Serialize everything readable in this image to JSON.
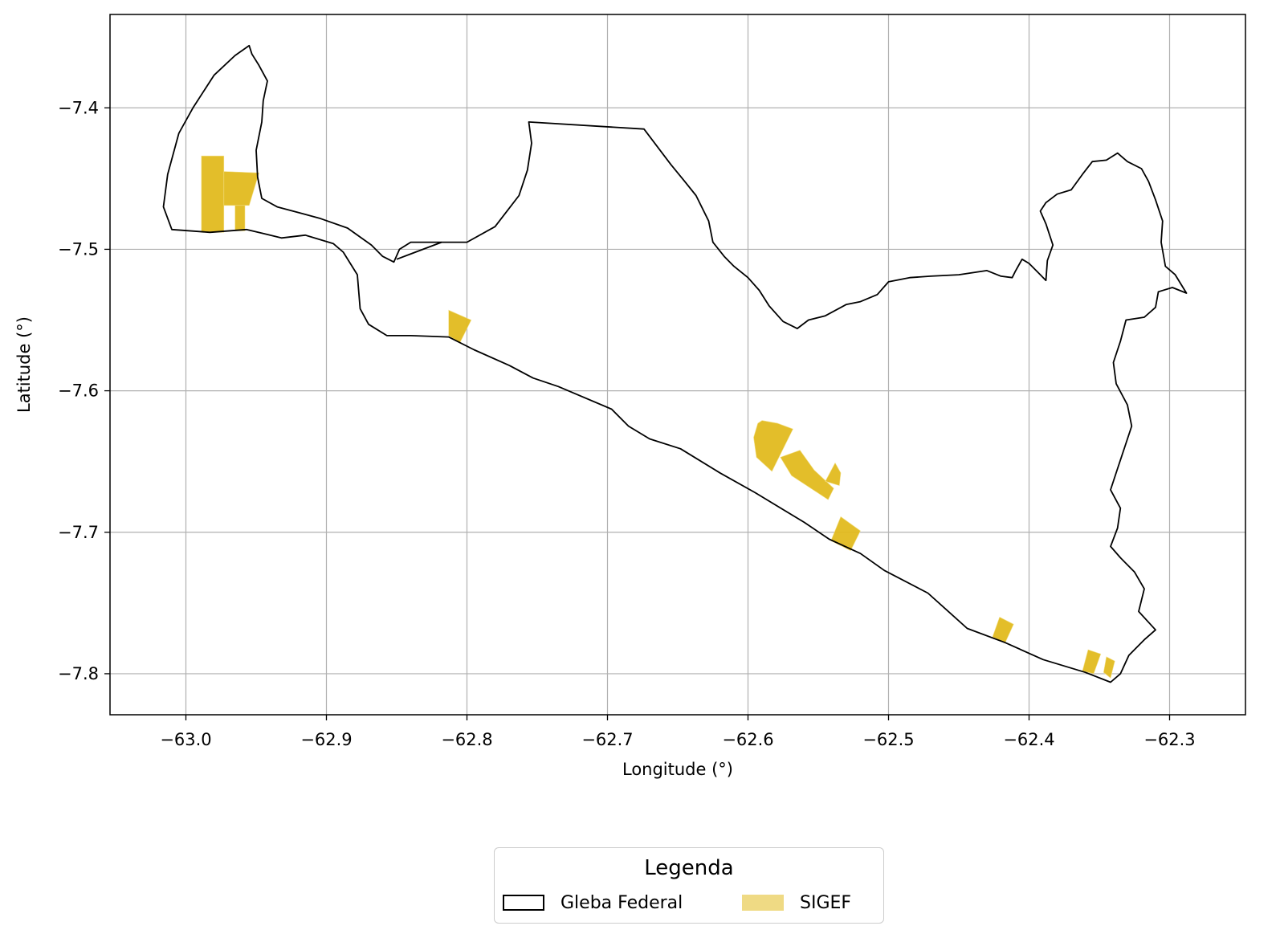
{
  "chart_data": {
    "type": "map",
    "xlabel": "Longitude (°)",
    "ylabel": "Latitude (°)",
    "xlim": [
      -63.054,
      -62.246
    ],
    "ylim": [
      -7.829,
      -7.334
    ],
    "xticks": [
      {
        "value": -63.0,
        "label": "−63.0"
      },
      {
        "value": -62.9,
        "label": "−62.9"
      },
      {
        "value": -62.8,
        "label": "−62.8"
      },
      {
        "value": -62.7,
        "label": "−62.7"
      },
      {
        "value": -62.6,
        "label": "−62.6"
      },
      {
        "value": -62.5,
        "label": "−62.5"
      },
      {
        "value": -62.4,
        "label": "−62.4"
      },
      {
        "value": -62.3,
        "label": "−62.3"
      }
    ],
    "yticks": [
      {
        "value": -7.4,
        "label": "−7.4"
      },
      {
        "value": -7.5,
        "label": "−7.5"
      },
      {
        "value": -7.6,
        "label": "−7.6"
      },
      {
        "value": -7.7,
        "label": "−7.7"
      },
      {
        "value": -7.8,
        "label": "−7.8"
      }
    ],
    "grid": true,
    "legend": {
      "title": "Legenda",
      "placement": "bottom-center, below plot",
      "entries": [
        {
          "name": "Gleba Federal",
          "style": "outline",
          "color": "#000000"
        },
        {
          "name": "SIGEF",
          "style": "fill",
          "color": "#e2bb1f"
        }
      ]
    },
    "gleba_federal": {
      "color": "#000000",
      "coordinates": [
        [
          -63.01,
          -7.486
        ],
        [
          -62.983,
          -7.488
        ],
        [
          -62.957,
          -7.486
        ],
        [
          -62.944,
          -7.489
        ],
        [
          -62.932,
          -7.492
        ],
        [
          -62.915,
          -7.49
        ],
        [
          -62.895,
          -7.496
        ],
        [
          -62.888,
          -7.502
        ],
        [
          -62.878,
          -7.518
        ],
        [
          -62.876,
          -7.542
        ],
        [
          -62.87,
          -7.553
        ],
        [
          -62.857,
          -7.561
        ],
        [
          -62.84,
          -7.561
        ],
        [
          -62.813,
          -7.562
        ],
        [
          -62.795,
          -7.571
        ],
        [
          -62.77,
          -7.582
        ],
        [
          -62.753,
          -7.591
        ],
        [
          -62.735,
          -7.597
        ],
        [
          -62.697,
          -7.613
        ],
        [
          -62.685,
          -7.625
        ],
        [
          -62.67,
          -7.634
        ],
        [
          -62.648,
          -7.641
        ],
        [
          -62.62,
          -7.658
        ],
        [
          -62.595,
          -7.672
        ],
        [
          -62.56,
          -7.693
        ],
        [
          -62.542,
          -7.705
        ],
        [
          -62.52,
          -7.715
        ],
        [
          -62.503,
          -7.727
        ],
        [
          -62.472,
          -7.743
        ],
        [
          -62.444,
          -7.768
        ],
        [
          -62.417,
          -7.778
        ],
        [
          -62.39,
          -7.79
        ],
        [
          -62.36,
          -7.799
        ],
        [
          -62.342,
          -7.806
        ],
        [
          -62.335,
          -7.8
        ],
        [
          -62.329,
          -7.787
        ],
        [
          -62.318,
          -7.776
        ],
        [
          -62.31,
          -7.769
        ],
        [
          -62.322,
          -7.756
        ],
        [
          -62.318,
          -7.74
        ],
        [
          -62.325,
          -7.728
        ],
        [
          -62.335,
          -7.718
        ],
        [
          -62.342,
          -7.71
        ],
        [
          -62.337,
          -7.697
        ],
        [
          -62.335,
          -7.683
        ],
        [
          -62.342,
          -7.67
        ],
        [
          -62.337,
          -7.655
        ],
        [
          -62.332,
          -7.64
        ],
        [
          -62.327,
          -7.625
        ],
        [
          -62.33,
          -7.61
        ],
        [
          -62.338,
          -7.595
        ],
        [
          -62.34,
          -7.58
        ],
        [
          -62.335,
          -7.565
        ],
        [
          -62.331,
          -7.55
        ],
        [
          -62.318,
          -7.548
        ],
        [
          -62.31,
          -7.541
        ],
        [
          -62.308,
          -7.53
        ],
        [
          -62.298,
          -7.527
        ],
        [
          -62.288,
          -7.531
        ],
        [
          -62.296,
          -7.518
        ],
        [
          -62.303,
          -7.512
        ],
        [
          -62.306,
          -7.495
        ],
        [
          -62.305,
          -7.48
        ],
        [
          -62.31,
          -7.465
        ],
        [
          -62.315,
          -7.452
        ],
        [
          -62.32,
          -7.443
        ],
        [
          -62.33,
          -7.438
        ],
        [
          -62.337,
          -7.432
        ],
        [
          -62.345,
          -7.437
        ],
        [
          -62.355,
          -7.438
        ],
        [
          -62.362,
          -7.447
        ],
        [
          -62.37,
          -7.458
        ],
        [
          -62.38,
          -7.461
        ],
        [
          -62.388,
          -7.467
        ],
        [
          -62.392,
          -7.473
        ],
        [
          -62.388,
          -7.482
        ],
        [
          -62.383,
          -7.497
        ],
        [
          -62.387,
          -7.508
        ],
        [
          -62.388,
          -7.522
        ],
        [
          -62.393,
          -7.517
        ],
        [
          -62.4,
          -7.51
        ],
        [
          -62.405,
          -7.507
        ],
        [
          -62.41,
          -7.516
        ],
        [
          -62.412,
          -7.52
        ],
        [
          -62.42,
          -7.519
        ],
        [
          -62.43,
          -7.515
        ],
        [
          -62.45,
          -7.518
        ],
        [
          -62.47,
          -7.519
        ],
        [
          -62.485,
          -7.52
        ],
        [
          -62.5,
          -7.523
        ],
        [
          -62.508,
          -7.532
        ],
        [
          -62.52,
          -7.537
        ],
        [
          -62.53,
          -7.539
        ],
        [
          -62.545,
          -7.547
        ],
        [
          -62.557,
          -7.55
        ],
        [
          -62.565,
          -7.556
        ],
        [
          -62.575,
          -7.551
        ],
        [
          -62.585,
          -7.54
        ],
        [
          -62.592,
          -7.529
        ],
        [
          -62.6,
          -7.52
        ],
        [
          -62.61,
          -7.512
        ],
        [
          -62.617,
          -7.505
        ],
        [
          -62.625,
          -7.495
        ],
        [
          -62.628,
          -7.48
        ],
        [
          -62.637,
          -7.462
        ],
        [
          -62.645,
          -7.452
        ],
        [
          -62.655,
          -7.44
        ],
        [
          -62.674,
          -7.415
        ],
        [
          -62.756,
          -7.41
        ],
        [
          -62.754,
          -7.425
        ],
        [
          -62.757,
          -7.444
        ],
        [
          -62.763,
          -7.462
        ],
        [
          -62.78,
          -7.484
        ],
        [
          -62.8,
          -7.495
        ],
        [
          -62.818,
          -7.495
        ],
        [
          -62.84,
          -7.495
        ],
        [
          -62.848,
          -7.5
        ],
        [
          -62.852,
          -7.509
        ],
        [
          -62.86,
          -7.505
        ],
        [
          -62.868,
          -7.497
        ],
        [
          -62.885,
          -7.485
        ],
        [
          -62.905,
          -7.478
        ],
        [
          -62.92,
          -7.474
        ],
        [
          -62.935,
          -7.47
        ],
        [
          -62.946,
          -7.464
        ],
        [
          -62.949,
          -7.449
        ],
        [
          -62.95,
          -7.43
        ],
        [
          -62.946,
          -7.41
        ],
        [
          -62.945,
          -7.395
        ],
        [
          -62.942,
          -7.381
        ],
        [
          -62.948,
          -7.37
        ],
        [
          -62.953,
          -7.362
        ],
        [
          -62.955,
          -7.356
        ],
        [
          -62.965,
          -7.363
        ],
        [
          -62.98,
          -7.377
        ],
        [
          -62.995,
          -7.4
        ],
        [
          -63.005,
          -7.418
        ],
        [
          -63.013,
          -7.447
        ],
        [
          -63.016,
          -7.47
        ],
        [
          -63.01,
          -7.486
        ]
      ],
      "divider": [
        [
          -62.818,
          -7.495
        ],
        [
          -62.85,
          -7.507
        ]
      ]
    },
    "sigef": {
      "color": "#e2bb1f",
      "polygons": [
        [
          [
            -62.989,
            -7.434
          ],
          [
            -62.973,
            -7.434
          ],
          [
            -62.973,
            -7.488
          ],
          [
            -62.989,
            -7.488
          ]
        ],
        [
          [
            -62.973,
            -7.445
          ],
          [
            -62.948,
            -7.446
          ],
          [
            -62.955,
            -7.469
          ],
          [
            -62.973,
            -7.469
          ]
        ],
        [
          [
            -62.965,
            -7.469
          ],
          [
            -62.958,
            -7.469
          ],
          [
            -62.958,
            -7.487
          ],
          [
            -62.965,
            -7.487
          ]
        ],
        [
          [
            -62.813,
            -7.543
          ],
          [
            -62.797,
            -7.55
          ],
          [
            -62.805,
            -7.566
          ],
          [
            -62.813,
            -7.561
          ]
        ],
        [
          [
            -62.59,
            -7.621
          ],
          [
            -62.579,
            -7.623
          ],
          [
            -62.568,
            -7.627
          ],
          [
            -62.583,
            -7.657
          ],
          [
            -62.594,
            -7.647
          ],
          [
            -62.596,
            -7.633
          ],
          [
            -62.593,
            -7.623
          ]
        ],
        [
          [
            -62.577,
            -7.647
          ],
          [
            -62.569,
            -7.66
          ],
          [
            -62.543,
            -7.677
          ],
          [
            -62.539,
            -7.669
          ],
          [
            -62.553,
            -7.656
          ],
          [
            -62.563,
            -7.642
          ]
        ],
        [
          [
            -62.538,
            -7.651
          ],
          [
            -62.545,
            -7.664
          ],
          [
            -62.535,
            -7.667
          ],
          [
            -62.534,
            -7.658
          ]
        ],
        [
          [
            -62.534,
            -7.689
          ],
          [
            -62.52,
            -7.699
          ],
          [
            -62.527,
            -7.713
          ],
          [
            -62.541,
            -7.706
          ]
        ],
        [
          [
            -62.421,
            -7.76
          ],
          [
            -62.411,
            -7.765
          ],
          [
            -62.417,
            -7.778
          ],
          [
            -62.426,
            -7.774
          ]
        ],
        [
          [
            -62.358,
            -7.783
          ],
          [
            -62.349,
            -7.786
          ],
          [
            -62.354,
            -7.8
          ],
          [
            -62.362,
            -7.798
          ]
        ],
        [
          [
            -62.345,
            -7.788
          ],
          [
            -62.339,
            -7.791
          ],
          [
            -62.342,
            -7.803
          ],
          [
            -62.347,
            -7.799
          ]
        ]
      ]
    }
  }
}
